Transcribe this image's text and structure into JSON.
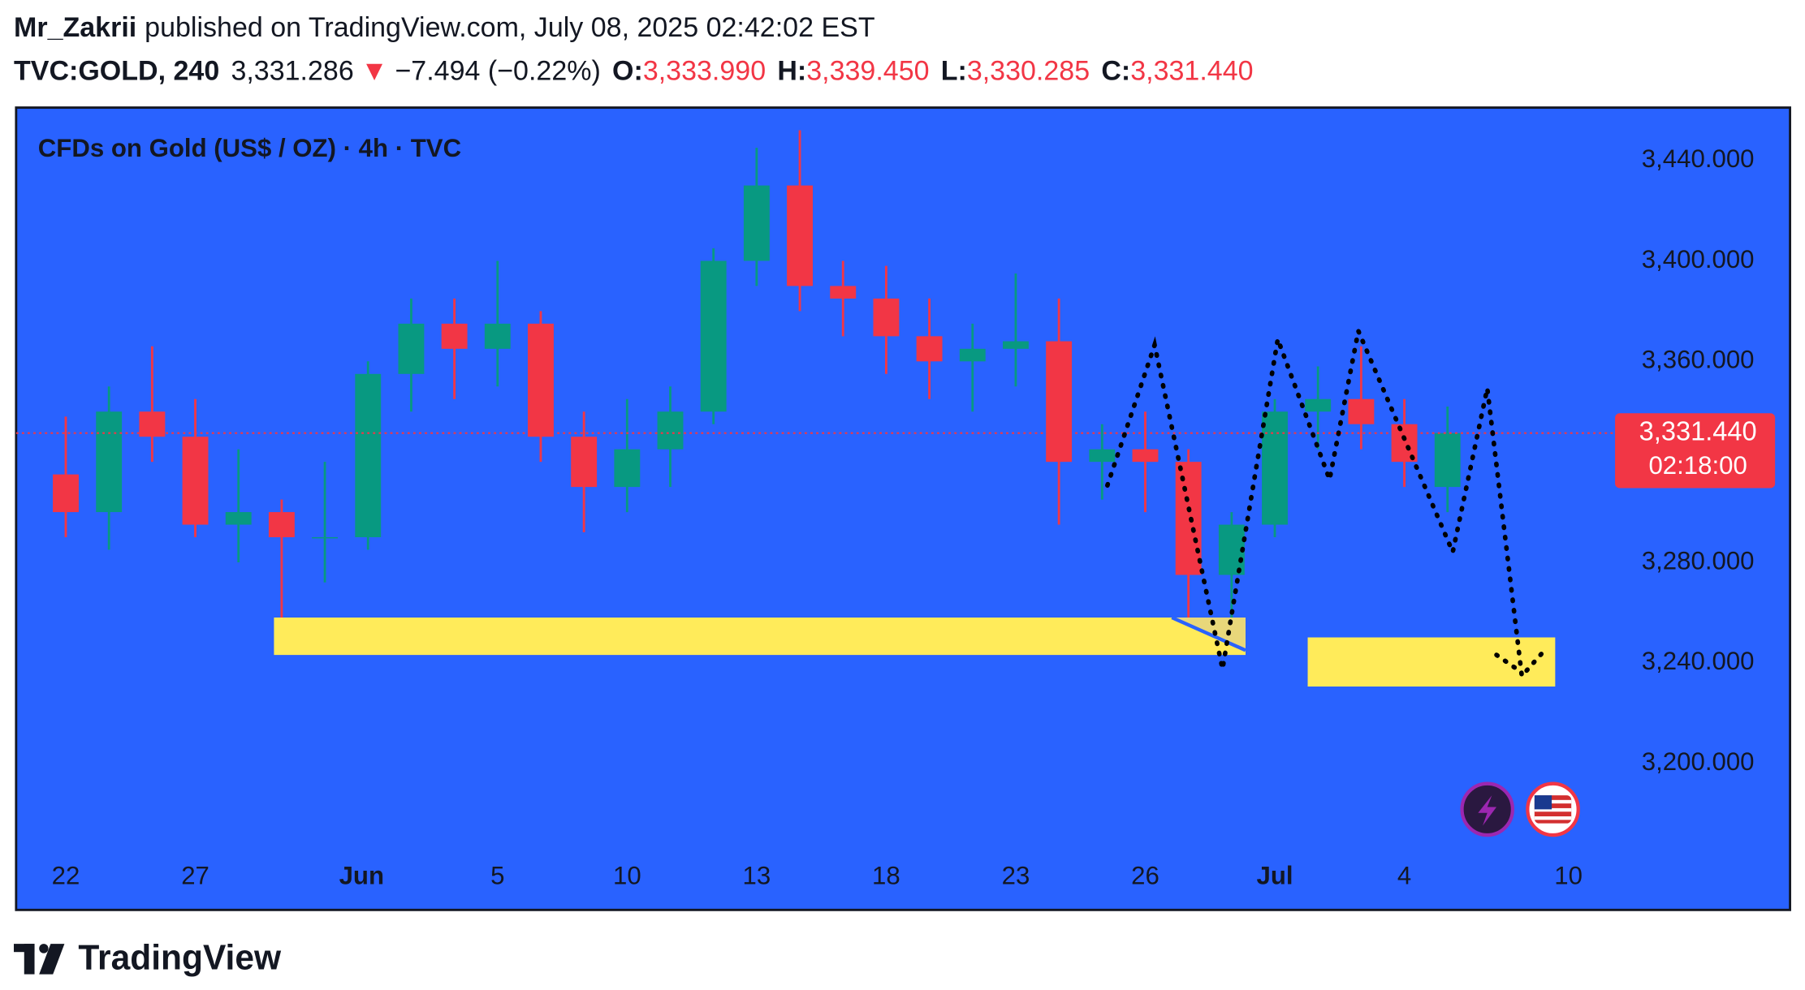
{
  "header": {
    "author": "Mr_Zakrii",
    "published": "published on TradingView.com, July 08, 2025 02:42:02 EST",
    "symbol": "TVC:GOLD, 240",
    "price": "3,331.286",
    "change_arrow": "▼",
    "change": "−7.494 (−0.22%)",
    "ohlc": [
      {
        "label": "O:",
        "value": "3,333.990"
      },
      {
        "label": "H:",
        "value": "3,339.450"
      },
      {
        "label": "L:",
        "value": "3,330.285"
      },
      {
        "label": "C:",
        "value": "3,331.440"
      }
    ]
  },
  "chart_data": {
    "type": "candlestick",
    "title": "CFDs on Gold (US$ / OZ) · 4h · TVC",
    "x": [
      0,
      1,
      2,
      3,
      4,
      5,
      6,
      7,
      8,
      9,
      10,
      11,
      12,
      13,
      14,
      15,
      16,
      17,
      18,
      19,
      20,
      21,
      22,
      23,
      24,
      25,
      26,
      27,
      28,
      29,
      30,
      31,
      32
    ],
    "open": [
      3315,
      3300,
      3340,
      3330,
      3295,
      3300,
      3290,
      3290,
      3355,
      3375,
      3365,
      3375,
      3330,
      3310,
      3325,
      3340,
      3400,
      3430,
      3390,
      3385,
      3370,
      3360,
      3365,
      3368,
      3320,
      3325,
      3320,
      3275,
      3295,
      3340,
      3345,
      3335,
      3310
    ],
    "high": [
      3338,
      3350,
      3366,
      3345,
      3325,
      3305,
      3320,
      3360,
      3385,
      3385,
      3400,
      3380,
      3340,
      3345,
      3350,
      3405,
      3445,
      3452,
      3400,
      3398,
      3385,
      3375,
      3395,
      3385,
      3335,
      3340,
      3325,
      3300,
      3345,
      3358,
      3366,
      3345,
      3342
    ],
    "low": [
      3290,
      3285,
      3320,
      3290,
      3280,
      3246,
      3272,
      3285,
      3340,
      3345,
      3350,
      3320,
      3292,
      3300,
      3310,
      3335,
      3390,
      3380,
      3370,
      3355,
      3345,
      3340,
      3350,
      3295,
      3305,
      3300,
      3255,
      3258,
      3290,
      3325,
      3325,
      3310,
      3300
    ],
    "close": [
      3300,
      3340,
      3330,
      3295,
      3300,
      3290,
      3290,
      3355,
      3375,
      3365,
      3375,
      3330,
      3310,
      3325,
      3340,
      3400,
      3430,
      3390,
      3385,
      3370,
      3360,
      3365,
      3368,
      3320,
      3325,
      3320,
      3275,
      3295,
      3340,
      3345,
      3335,
      3320,
      3331.44
    ],
    "up_color": "#089981",
    "down_color": "#f23645",
    "xlim": [
      -1.15,
      35.8
    ],
    "xticks": [
      {
        "value": 0,
        "label": "22"
      },
      {
        "value": 3,
        "label": "27"
      },
      {
        "value": 6.85,
        "label": "Jun"
      },
      {
        "value": 10,
        "label": "5"
      },
      {
        "value": 13,
        "label": "10"
      },
      {
        "value": 16,
        "label": "13"
      },
      {
        "value": 19,
        "label": "18"
      },
      {
        "value": 22,
        "label": "23"
      },
      {
        "value": 25,
        "label": "26"
      },
      {
        "value": 28,
        "label": "Jul"
      },
      {
        "value": 31,
        "label": "4"
      },
      {
        "value": 34.8,
        "label": "10"
      }
    ],
    "ylim": [
      3164,
      3461
    ],
    "yticks": [
      {
        "value": 3200,
        "label": "3,200.000"
      },
      {
        "value": 3240,
        "label": "3,240.000"
      },
      {
        "value": 3280,
        "label": "3,280.000"
      },
      {
        "value": 3360,
        "label": "3,360.000"
      },
      {
        "value": 3400,
        "label": "3,400.000"
      },
      {
        "value": 3440,
        "label": "3,440.000"
      }
    ],
    "grid": false,
    "last_price": {
      "value": 3331.44,
      "label": "3,331.440"
    },
    "countdown": "02:18:00"
  },
  "footer": {
    "brand": "TradingView"
  }
}
